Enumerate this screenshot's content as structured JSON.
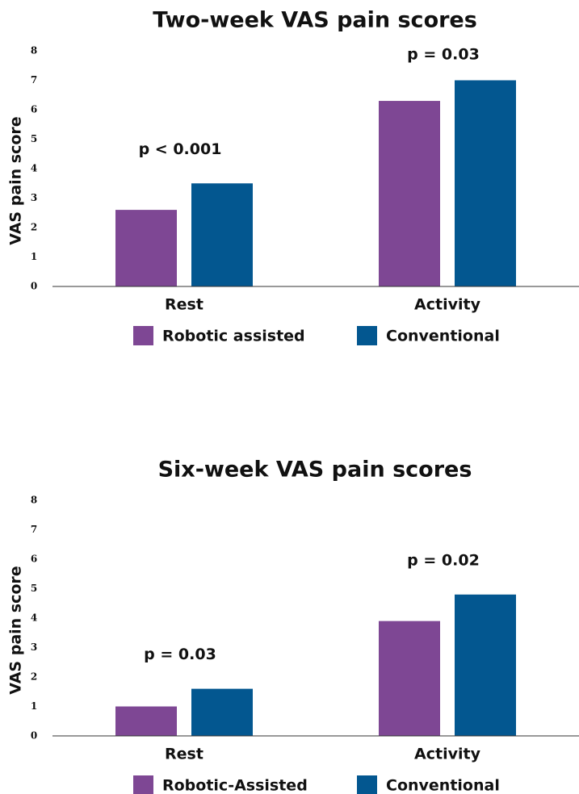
{
  "chart_data": [
    {
      "type": "bar",
      "title": "Two-week VAS pain scores",
      "y_label": "VAS pain score",
      "categories": [
        "Rest",
        "Activity"
      ],
      "series": [
        {
          "name": "Robotic assisted",
          "color": "#7e4794",
          "values": [
            2.6,
            6.3
          ]
        },
        {
          "name": "Conventional",
          "color": "#035790",
          "values": [
            3.5,
            7.0
          ]
        }
      ],
      "annotations": [
        "p < 0.001",
        "p = 0.03"
      ],
      "ylim": [
        0,
        8
      ],
      "yticks": [
        0,
        1,
        2,
        3,
        4,
        5,
        6,
        7,
        8
      ],
      "grid": false
    },
    {
      "type": "bar",
      "title": "Six-week VAS pain scores",
      "y_label": "VAS pain score",
      "categories": [
        "Rest",
        "Activity"
      ],
      "series": [
        {
          "name": "Robotic-Assisted",
          "color": "#7e4794",
          "values": [
            1.0,
            3.9
          ]
        },
        {
          "name": "Conventional",
          "color": "#035790",
          "values": [
            1.6,
            4.8
          ]
        }
      ],
      "annotations": [
        "p = 0.03",
        "p = 0.02"
      ],
      "ylim": [
        0,
        8
      ],
      "yticks": [
        0,
        1,
        2,
        3,
        4,
        5,
        6,
        7,
        8
      ],
      "grid": false
    }
  ]
}
